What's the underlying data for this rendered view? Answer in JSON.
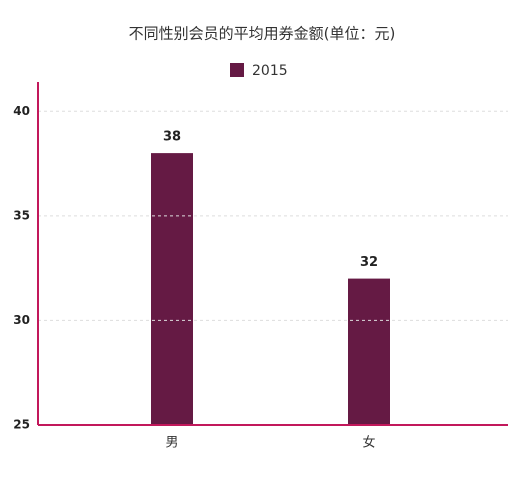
{
  "chart_data": {
    "type": "bar",
    "title": "不同性别会员的平均用券金额(单位：元)",
    "categories": [
      "男",
      "女"
    ],
    "series": [
      {
        "name": "2015",
        "color": "#651a44",
        "values": [
          38,
          32
        ]
      }
    ],
    "ylim": [
      25,
      41.4
    ],
    "yticks": [
      25,
      30,
      35,
      40
    ],
    "grid": true
  }
}
